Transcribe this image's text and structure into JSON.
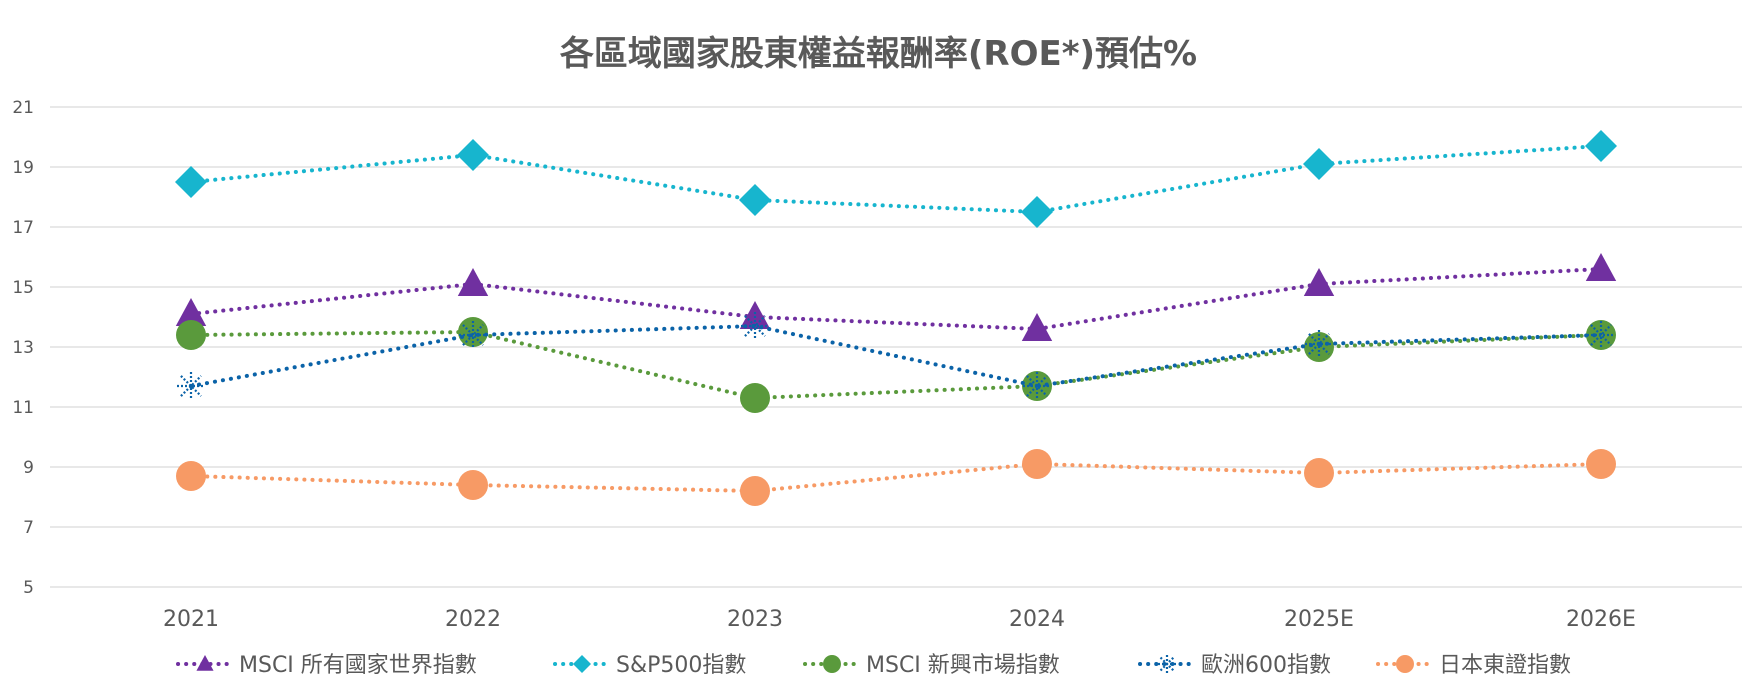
{
  "chart_data": {
    "type": "line",
    "title": "各區域國家股東權益報酬率(ROE*)預估%",
    "xlabel": "",
    "ylabel": "",
    "categories": [
      "2021",
      "2022",
      "2023",
      "2024",
      "2025E",
      "2026E"
    ],
    "ylim": [
      5,
      21
    ],
    "yticks": [
      5,
      7,
      9,
      11,
      13,
      15,
      17,
      19,
      21
    ],
    "grid": true,
    "legend_position": "bottom",
    "series": [
      {
        "name": "MSCI 所有國家世界指數",
        "color": "#7030A0",
        "marker": "triangle",
        "values": [
          14.1,
          15.1,
          14.0,
          13.6,
          15.1,
          15.6
        ]
      },
      {
        "name": "S&P500指數",
        "color": "#17B5CE",
        "marker": "diamond",
        "values": [
          18.5,
          19.4,
          17.9,
          17.5,
          19.1,
          19.7
        ]
      },
      {
        "name": "MSCI 新興市場指數",
        "color": "#5A9A3C",
        "marker": "circle",
        "values": [
          13.4,
          13.5,
          11.3,
          11.7,
          13.0,
          13.4
        ]
      },
      {
        "name": "歐洲600指數",
        "color": "#0B63A8",
        "marker": "star",
        "values": [
          11.7,
          13.4,
          13.7,
          11.7,
          13.1,
          13.4
        ]
      },
      {
        "name": "日本東證指數",
        "color": "#F79A65",
        "marker": "circle",
        "values": [
          8.7,
          8.4,
          8.2,
          9.1,
          8.8,
          9.1
        ]
      }
    ]
  }
}
